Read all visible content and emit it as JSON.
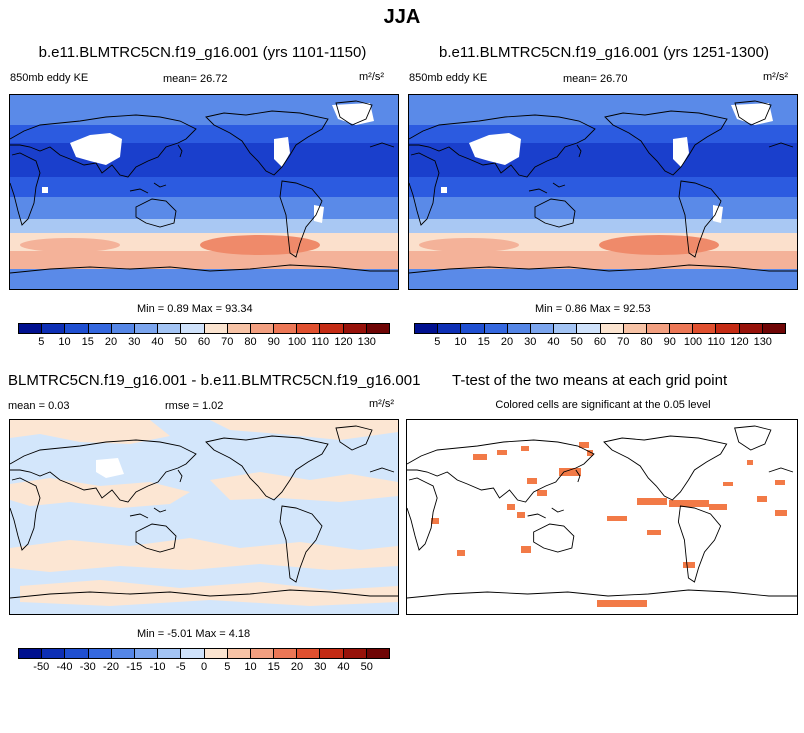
{
  "page": {
    "title": "JJA"
  },
  "panels": [
    {
      "id": "case1",
      "title": "b.e11.BLMTRC5CN.f19_g16.001 (yrs 1101-1150)",
      "variable": "850mb eddy KE",
      "mean_label": "mean=",
      "mean": "26.72",
      "units": "m²/s²",
      "min_label": "Min =",
      "min": "0.89",
      "max_label": "Max =",
      "max": "93.34"
    },
    {
      "id": "case2",
      "title": "b.e11.BLMTRC5CN.f19_g16.001 (yrs 1251-1300)",
      "variable": "850mb eddy KE",
      "mean_label": "mean=",
      "mean": "26.70",
      "units": "m²/s²",
      "min_label": "Min =",
      "min": "0.86",
      "max_label": "Max =",
      "max": "92.53"
    },
    {
      "id": "diff",
      "title": "BLMTRC5CN.f19_g16.001 - b.e11.BLMTRC5CN.f19_g16.001",
      "mean_label": "mean =",
      "mean": "0.03",
      "rmse_label": "rmse =",
      "rmse": "1.02",
      "units": "m²/s²",
      "min_label": "Min =",
      "min": "-5.01",
      "max_label": "Max =",
      "max": "4.18"
    },
    {
      "id": "ttest",
      "title": "T-test of the two means at each grid point",
      "subtitle": "Colored cells are significant at the 0.05 level"
    }
  ],
  "colorbars": {
    "abs": {
      "ticks": [
        "5",
        "10",
        "15",
        "20",
        "30",
        "40",
        "50",
        "60",
        "70",
        "80",
        "90",
        "100",
        "110",
        "120",
        "130"
      ],
      "colors": [
        "#00108f",
        "#0d2fb5",
        "#1f4fd1",
        "#3568df",
        "#5586e6",
        "#7ba5ee",
        "#a3c4f4",
        "#cfe2fb",
        "#fbe4d0",
        "#f7c3a6",
        "#f29f80",
        "#ec7756",
        "#e0502f",
        "#c42b14",
        "#97120a",
        "#6f0505"
      ]
    },
    "diff": {
      "ticks": [
        "-50",
        "-40",
        "-30",
        "-20",
        "-15",
        "-10",
        "-5",
        "0",
        "5",
        "10",
        "15",
        "20",
        "30",
        "40",
        "50"
      ],
      "colors": [
        "#00108f",
        "#0d2fb5",
        "#1f4fd1",
        "#3568df",
        "#5586e6",
        "#7ba5ee",
        "#a3c4f4",
        "#cfe2fb",
        "#fbe4d0",
        "#f7c3a6",
        "#f29f80",
        "#ec7756",
        "#e0502f",
        "#c42b14",
        "#97120a",
        "#6f0505"
      ]
    }
  },
  "field_colors": {
    "deep": "#1a3fcc",
    "mid": "#2c5be0",
    "light": "#5a8ae8",
    "pale": "#a9c8f3",
    "peach": "#fbe0cc",
    "salmon": "#f4b299",
    "red": "#ef8a6a",
    "white": "#ffffff",
    "sig": "#f27a47",
    "diff_blue": "#d3e6fb",
    "diff_peach": "#fce6d3"
  }
}
